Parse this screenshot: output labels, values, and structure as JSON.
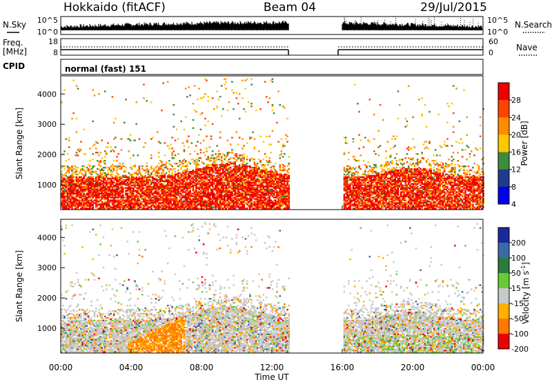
{
  "header": {
    "station": "Hokkaido (fitACF)",
    "beam": "Beam 04",
    "date": "29/Jul/2015"
  },
  "strip_labels": {
    "nsky": "N.Sky",
    "nsearch": "N.Search",
    "freq_line1": "Freq.",
    "freq_line2": "[MHz]",
    "nave": "Nave",
    "cpid": "CPID",
    "mode": "normal (fast) 151"
  },
  "chart_data": [
    {
      "type": "line",
      "id": "noise",
      "yscale": "log",
      "left_ticks": [
        "10^5",
        "10^0"
      ],
      "right_ticks": [
        "10^5",
        "10^0"
      ],
      "series": [
        {
          "name": "N.Sky",
          "style": "solid"
        },
        {
          "name": "N.Search",
          "style": "dotted"
        }
      ],
      "data_gaps_ut": [
        [
          13.0,
          16.0
        ]
      ]
    },
    {
      "type": "line",
      "id": "freq_nave",
      "left_ticks": [
        "18",
        "8"
      ],
      "right_ticks": [
        "60",
        "0"
      ],
      "series": [
        {
          "name": "Freq.",
          "style": "solid",
          "value": 10.5,
          "unit": "MHz"
        },
        {
          "name": "Nave",
          "style": "dotted",
          "value": 30
        }
      ],
      "data_gaps_ut": [
        [
          13.0,
          16.0
        ]
      ]
    },
    {
      "type": "heatmap",
      "id": "power",
      "xlabel": "",
      "ylabel": "Slant Range [km]",
      "xlim": [
        0,
        24
      ],
      "ylim": [
        180,
        4600
      ],
      "yticks": [
        1000,
        2000,
        3000,
        4000
      ],
      "colorbar_label": "Power [dB]",
      "colorbar_ticks": [
        "28",
        "24",
        "20",
        "16",
        "12",
        "8",
        "4"
      ],
      "colorbar_colors": [
        "#ee0000",
        "#ff4400",
        "#ff8c00",
        "#ffc800",
        "#3c8c3c",
        "#1e3c8c",
        "#0000ee"
      ],
      "data_gaps_ut": [
        [
          13.0,
          16.0
        ]
      ]
    },
    {
      "type": "heatmap",
      "id": "velocity",
      "xlabel": "Time UT",
      "ylabel": "Slant Range [km]",
      "xlim": [
        0,
        24
      ],
      "ylim": [
        180,
        4600
      ],
      "yticks": [
        1000,
        2000,
        3000,
        4000
      ],
      "xtick_labels": [
        "00:00",
        "04:00",
        "08:00",
        "12:00",
        "16:00",
        "20:00",
        "00:00"
      ],
      "colorbar_label": "Velocity [m s",
      "colorbar_exponent": "-1",
      "colorbar_label_end": "]",
      "colorbar_ticks": [
        "200",
        "100",
        "50",
        "15",
        "-15",
        "-50",
        "-100",
        "-200"
      ],
      "colorbar_colors": [
        "#1a2a9c",
        "#3a6aa8",
        "#2c7a3c",
        "#66cc33",
        "#c8c8c8",
        "#ffb000",
        "#ff7800",
        "#ee0000"
      ],
      "data_gaps_ut": [
        [
          13.0,
          16.0
        ]
      ]
    }
  ],
  "colors": {
    "power_scheme": [
      "#0000ee",
      "#1e3c8c",
      "#3c8c3c",
      "#ffc800",
      "#ff8c00",
      "#ff4400",
      "#ee0000"
    ],
    "velocity_scheme": [
      "#ee0000",
      "#ff7800",
      "#ffb000",
      "#c8c8c8",
      "#66cc33",
      "#2c7a3c",
      "#3a6aa8",
      "#1a2a9c"
    ]
  }
}
